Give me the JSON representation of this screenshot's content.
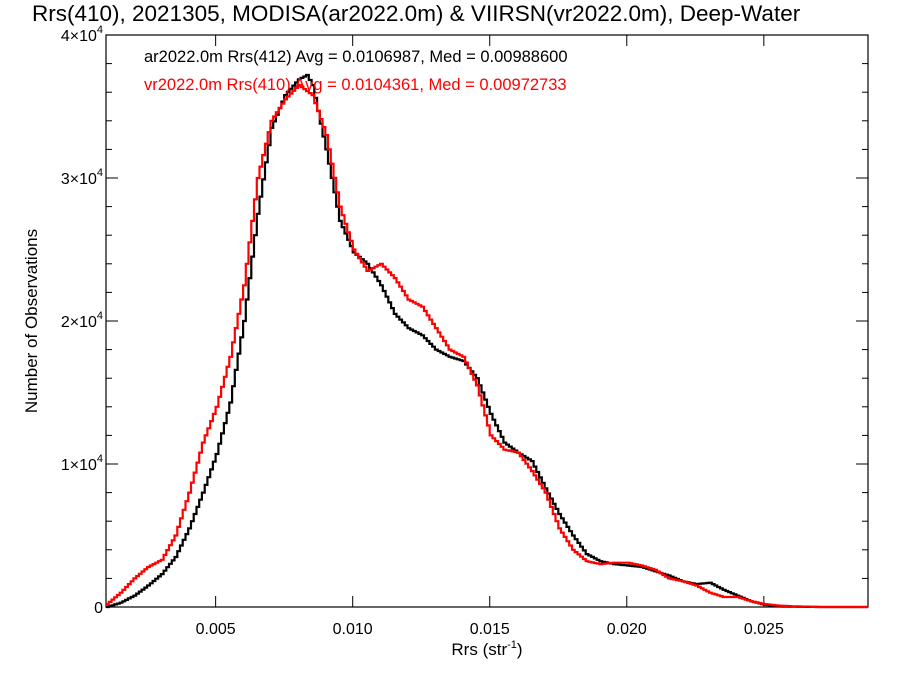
{
  "chart_data": {
    "type": "line",
    "title": "Rrs(410), 2021305, MODISA(ar2022.0m) & VIIRSN(vr2022.0m), Deep-Water",
    "xlabel": "Rrs (str",
    "xlabel_sup": "-1",
    "xlabel_suffix": ")",
    "ylabel": "Number of Observations",
    "xlim": [
      0.001,
      0.0288
    ],
    "ylim": [
      0,
      40000
    ],
    "x_ticks": [
      0.005,
      0.01,
      0.015,
      0.02,
      0.025
    ],
    "x_tick_labels": [
      "0.005",
      "0.010",
      "0.015",
      "0.020",
      "0.025"
    ],
    "y_ticks": [
      0,
      10000,
      20000,
      30000,
      40000
    ],
    "y_tick_labels": [
      {
        "mantissa": "0",
        "exp": ""
      },
      {
        "mantissa": "1×10",
        "exp": "4"
      },
      {
        "mantissa": "2×10",
        "exp": "4"
      },
      {
        "mantissa": "3×10",
        "exp": "4"
      },
      {
        "mantissa": "4×10",
        "exp": "4"
      }
    ],
    "grid": false,
    "legend_position": "top-left",
    "series": [
      {
        "name": "ar2022.0m Rrs(412) Avg = 0.0106987, Med = 0.00988600",
        "color": "#000000",
        "x": [
          0.001,
          0.0015,
          0.002,
          0.0025,
          0.003,
          0.0035,
          0.004,
          0.0045,
          0.005,
          0.0055,
          0.006,
          0.0065,
          0.007,
          0.0075,
          0.008,
          0.0083,
          0.0085,
          0.009,
          0.0095,
          0.01,
          0.0105,
          0.011,
          0.0115,
          0.012,
          0.0125,
          0.013,
          0.0135,
          0.014,
          0.0145,
          0.015,
          0.0155,
          0.016,
          0.0165,
          0.017,
          0.0175,
          0.018,
          0.0185,
          0.019,
          0.0195,
          0.02,
          0.0205,
          0.021,
          0.0215,
          0.022,
          0.0225,
          0.023,
          0.0235,
          0.024,
          0.0245,
          0.025,
          0.0255,
          0.026,
          0.027,
          0.028,
          0.0288
        ],
        "y": [
          0,
          300,
          800,
          1500,
          2300,
          3500,
          5500,
          8000,
          10700,
          14300,
          20000,
          27500,
          33500,
          35800,
          36900,
          37200,
          36500,
          32000,
          27000,
          24800,
          24000,
          22500,
          20500,
          19500,
          19000,
          18000,
          17500,
          17200,
          16000,
          13500,
          11500,
          10800,
          10200,
          8300,
          6500,
          5000,
          3700,
          3200,
          3000,
          2900,
          2800,
          2500,
          2200,
          1800,
          1600,
          1700,
          1200,
          800,
          400,
          150,
          50,
          20,
          0,
          0,
          0
        ]
      },
      {
        "name": "vr2022.0m Rrs(410) Avg = 0.0104361, Med = 0.00972733",
        "color": "#ff0000",
        "x": [
          0.001,
          0.0015,
          0.002,
          0.0025,
          0.003,
          0.0035,
          0.004,
          0.0045,
          0.005,
          0.0055,
          0.006,
          0.0065,
          0.007,
          0.0075,
          0.008,
          0.0085,
          0.009,
          0.0095,
          0.01,
          0.0105,
          0.011,
          0.0115,
          0.012,
          0.0125,
          0.013,
          0.0135,
          0.014,
          0.0145,
          0.015,
          0.0155,
          0.016,
          0.0165,
          0.017,
          0.0175,
          0.018,
          0.0185,
          0.019,
          0.0195,
          0.02,
          0.0205,
          0.021,
          0.0215,
          0.022,
          0.0225,
          0.023,
          0.0235,
          0.024,
          0.0245,
          0.025,
          0.0255,
          0.026,
          0.027,
          0.028,
          0.0288
        ],
        "y": [
          200,
          1000,
          2000,
          2800,
          3300,
          5000,
          8000,
          11500,
          14000,
          17500,
          22500,
          30000,
          34000,
          35500,
          36500,
          35800,
          33000,
          28000,
          25000,
          23500,
          24000,
          23000,
          21500,
          21000,
          19500,
          18000,
          17500,
          15500,
          12000,
          11000,
          10800,
          9500,
          8000,
          5500,
          4000,
          3200,
          3000,
          3100,
          3100,
          2900,
          2600,
          2000,
          1800,
          1500,
          1000,
          700,
          700,
          400,
          200,
          100,
          50,
          0,
          0,
          0
        ]
      }
    ]
  }
}
